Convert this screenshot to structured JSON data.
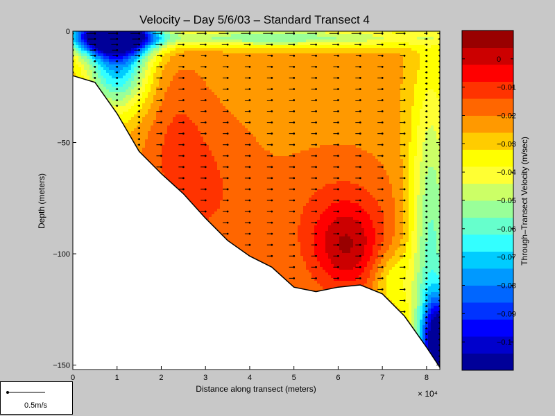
{
  "chart_data": {
    "type": "heatmap",
    "title": "Velocity – Day 5/6/03 – Standard Transect 4",
    "xlabel": "Distance along transect (meters)",
    "ylabel": "Depth (meters)",
    "x_multiplier": "× 10⁴",
    "xlim": [
      0,
      8.3
    ],
    "ylim": [
      -152,
      0
    ],
    "xticks": [
      "0",
      "1",
      "2",
      "3",
      "4",
      "5",
      "6",
      "7",
      "8"
    ],
    "yticks": [
      "0",
      "−50",
      "−100",
      "−150"
    ],
    "grid": false,
    "colorbar": {
      "label": "Through–Transect Velocity (m/sec)",
      "range": [
        -0.11,
        0.01
      ],
      "ticks": [
        "0",
        "−0.01",
        "−0.02",
        "−0.03",
        "−0.04",
        "−0.05",
        "−0.06",
        "−0.07",
        "−0.08",
        "−0.09",
        "−0.1"
      ],
      "colors": [
        "#000099",
        "#0000cc",
        "#0000ff",
        "#0033ff",
        "#0066ff",
        "#0099ff",
        "#00ccff",
        "#33ffff",
        "#66ffcc",
        "#99ff99",
        "#ccff66",
        "#ffff33",
        "#ffff00",
        "#ffcc00",
        "#ff9900",
        "#ff6600",
        "#ff3300",
        "#ff0000",
        "#cc0000",
        "#990000"
      ]
    },
    "bottom_profile": {
      "x": [
        0,
        0.5,
        1.0,
        1.5,
        2.0,
        2.5,
        3.0,
        3.5,
        4.0,
        4.5,
        5.0,
        5.5,
        6.0,
        6.5,
        7.0,
        7.5,
        8.0,
        8.3
      ],
      "depth": [
        -20,
        -23,
        -37,
        -54,
        -64,
        -73,
        -84,
        -94,
        -101,
        -106,
        -115,
        -117,
        -115,
        -114,
        -118,
        -128,
        -142,
        -151
      ]
    },
    "vector_scale_label": "0.5m/s"
  }
}
